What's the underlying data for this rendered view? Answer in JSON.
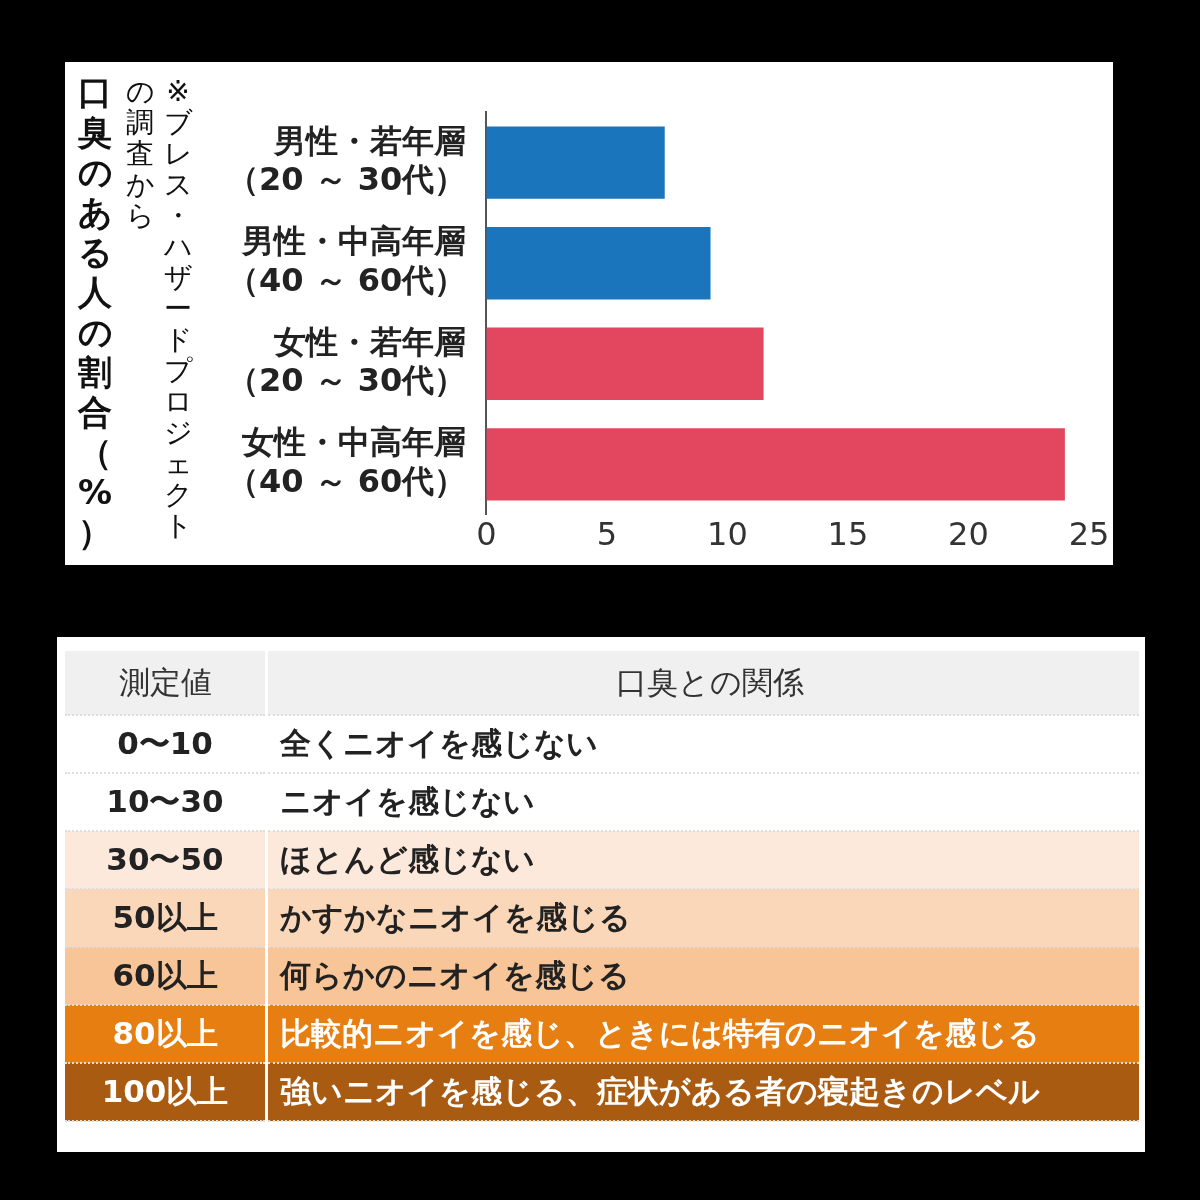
{
  "chart_data": [
    {
      "type": "bar",
      "orientation": "horizontal",
      "ylabel": "口臭のある人の割合（%）",
      "annotations": [
        "※ブレス・ハザードプロジェクト",
        "の調査から"
      ],
      "categories": [
        "男性・若年層（20 ～ 30代）",
        "男性・中高年層（40 ～ 60代）",
        "女性・若年層（20 ～ 30代）",
        "女性・中高年層（40 ～ 60代）"
      ],
      "values": [
        7.4,
        9.3,
        11.5,
        24.0
      ],
      "colors": [
        "#1b75bc",
        "#1b75bc",
        "#e2475f",
        "#e2475f"
      ],
      "xlim": [
        0,
        25
      ],
      "xticks": [
        0,
        5,
        10,
        15,
        20,
        25
      ],
      "grid": false,
      "legend": false
    },
    {
      "type": "other",
      "annotations": [
        "測定値",
        "口臭との関係",
        "0〜10",
        "全くニオイを感じない",
        "10〜30",
        "ニオイを感じない",
        "30〜50",
        "ほとんど感じない",
        "50以上",
        "かすかなニオイを感じる",
        "60以上",
        "何らかのニオイを感じる",
        "80以上",
        "比較的ニオイを感じ、ときには特有のニオイを感じる",
        "100以上",
        "強いニオイを感じる、症状がある者の寝起きのレベル"
      ],
      "colors": [
        "#f0f0f0",
        "#ffffff",
        "#ffffff",
        "#fde9dc",
        "#fbd7b9",
        "#f8c598",
        "#e67e12",
        "#a95b12"
      ]
    }
  ]
}
